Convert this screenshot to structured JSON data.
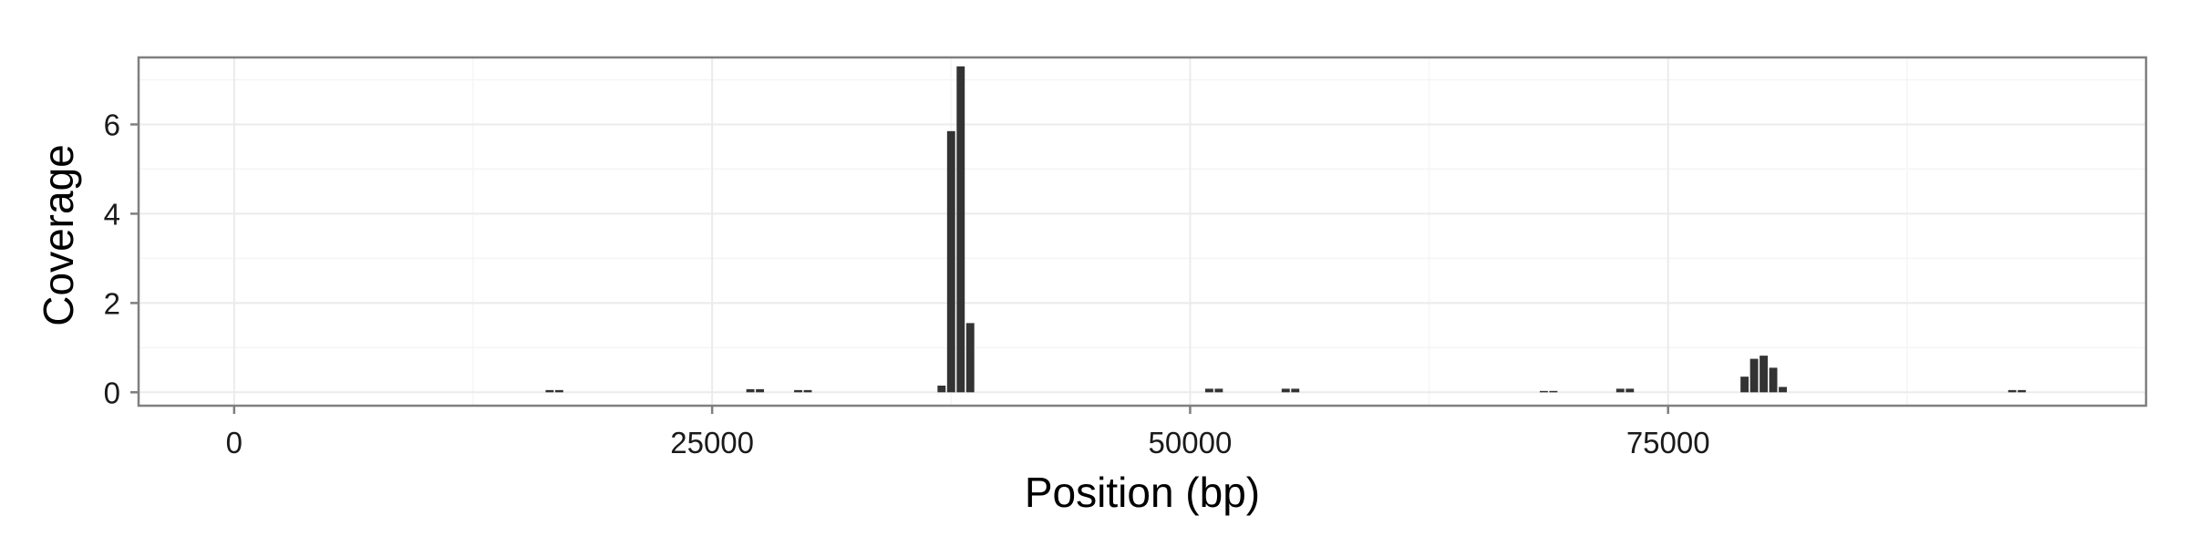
{
  "chart_data": {
    "type": "bar",
    "title": "",
    "xlabel": "Position (bp)",
    "ylabel": "Coverage",
    "xlim": [
      -5000,
      100000
    ],
    "ylim": [
      -0.3,
      7.5
    ],
    "x_ticks": [
      0,
      25000,
      50000,
      75000
    ],
    "x_tick_labels": [
      "0",
      "25000",
      "50000",
      "75000"
    ],
    "y_ticks": [
      0,
      2,
      4,
      6
    ],
    "y_tick_labels": [
      "0",
      "2",
      "4",
      "6"
    ],
    "grid": true,
    "bar_width": 500,
    "x": [
      16500,
      17000,
      27000,
      27500,
      29500,
      30000,
      37000,
      37500,
      38000,
      38500,
      51000,
      51500,
      55000,
      55500,
      68500,
      69000,
      72500,
      73000,
      79000,
      79500,
      80000,
      80500,
      81000,
      93000,
      93500
    ],
    "values": [
      0.05,
      0.05,
      0.07,
      0.07,
      0.05,
      0.05,
      0.15,
      5.85,
      7.3,
      1.55,
      0.08,
      0.08,
      0.08,
      0.08,
      0.03,
      0.03,
      0.08,
      0.08,
      0.35,
      0.75,
      0.82,
      0.55,
      0.12,
      0.05,
      0.05
    ],
    "colors": {
      "bar": "#333333",
      "panel_background": "#ffffff",
      "panel_border": "#7f7f7f",
      "grid_major": "#ebebeb",
      "grid_minor": "#f5f5f5",
      "tick_mark": "#7f7f7f"
    }
  }
}
